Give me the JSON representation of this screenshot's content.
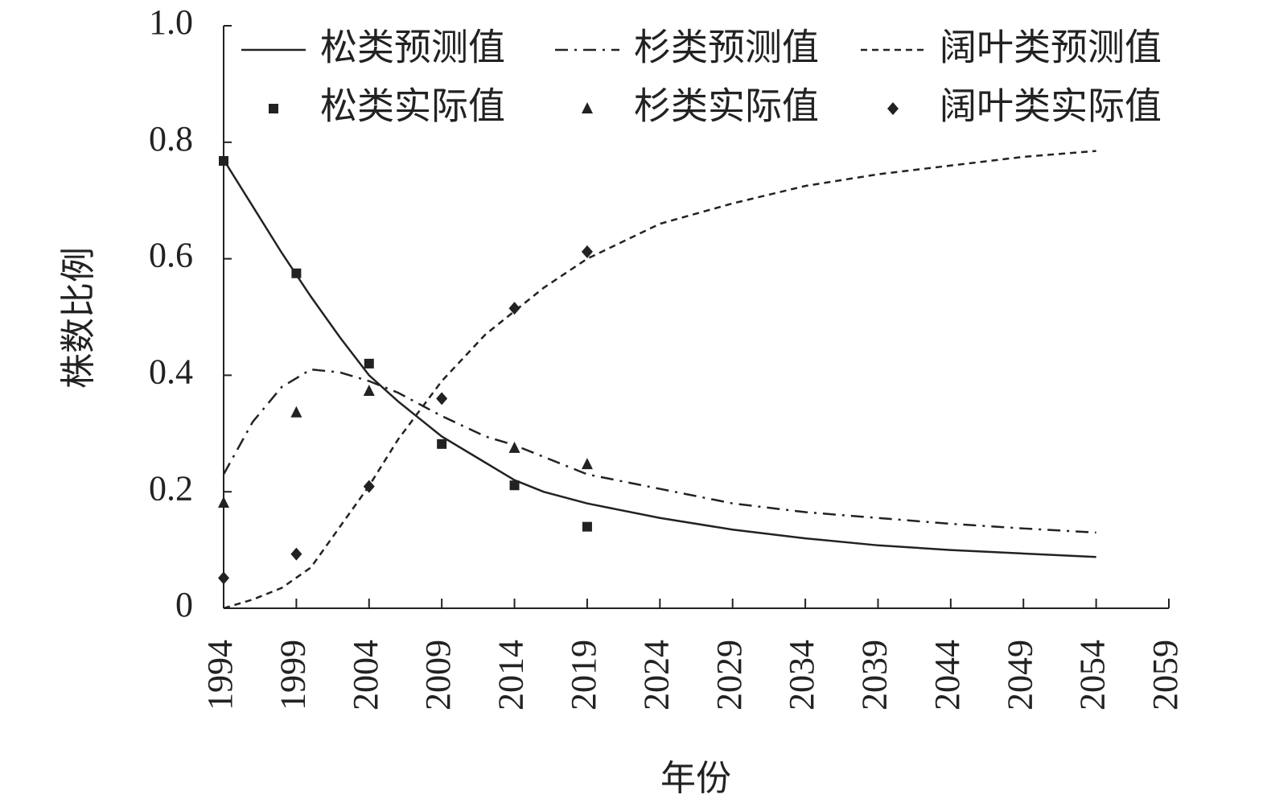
{
  "chart_data": {
    "type": "line-scatter",
    "x_label": "年份",
    "y_label": "株数比例",
    "xlim": [
      1994,
      2059
    ],
    "xticks": [
      1994,
      1999,
      2004,
      2009,
      2014,
      2019,
      2024,
      2029,
      2034,
      2039,
      2044,
      2049,
      2054,
      2059
    ],
    "ylim": [
      0,
      1
    ],
    "yticks": [
      0,
      0.2,
      0.4,
      0.6,
      0.8,
      {
        "value": 1,
        "label": "1.0"
      }
    ],
    "series": [
      {
        "name": "松类预测值",
        "kind": "line",
        "dash": "solid",
        "color": "#222222",
        "x": [
          1994,
          1996,
          1998,
          2000,
          2002,
          2004,
          2006,
          2009,
          2012,
          2014,
          2016,
          2019,
          2024,
          2029,
          2034,
          2039,
          2044,
          2049,
          2054
        ],
        "values": [
          0.77,
          0.69,
          0.61,
          0.535,
          0.465,
          0.4,
          0.355,
          0.295,
          0.25,
          0.22,
          0.2,
          0.18,
          0.155,
          0.135,
          0.12,
          0.108,
          0.1,
          0.094,
          0.088
        ]
      },
      {
        "name": "杉类预测值",
        "kind": "line",
        "dash": "dashdot",
        "color": "#222222",
        "x": [
          1994,
          1996,
          1998,
          2000,
          2002,
          2004,
          2006,
          2009,
          2012,
          2014,
          2016,
          2019,
          2024,
          2029,
          2034,
          2039,
          2044,
          2049,
          2054
        ],
        "values": [
          0.23,
          0.32,
          0.38,
          0.41,
          0.405,
          0.39,
          0.37,
          0.33,
          0.295,
          0.28,
          0.26,
          0.23,
          0.205,
          0.18,
          0.165,
          0.155,
          0.145,
          0.137,
          0.13
        ]
      },
      {
        "name": "阔叶类预测值",
        "kind": "line",
        "dash": "dashed",
        "color": "#222222",
        "x": [
          1994,
          1996,
          1998,
          2000,
          2002,
          2004,
          2006,
          2009,
          2012,
          2014,
          2016,
          2019,
          2024,
          2029,
          2034,
          2039,
          2044,
          2049,
          2054
        ],
        "values": [
          0.0,
          0.015,
          0.035,
          0.07,
          0.14,
          0.21,
          0.29,
          0.39,
          0.47,
          0.51,
          0.55,
          0.6,
          0.66,
          0.695,
          0.725,
          0.745,
          0.76,
          0.775,
          0.785
        ]
      },
      {
        "name": "松类实际值",
        "kind": "scatter",
        "marker": "square",
        "color": "#222222",
        "x": [
          1994,
          1999,
          2004,
          2009,
          2014,
          2019
        ],
        "values": [
          0.768,
          0.575,
          0.42,
          0.282,
          0.211,
          0.14
        ]
      },
      {
        "name": "杉类实际值",
        "kind": "scatter",
        "marker": "triangle",
        "color": "#222222",
        "x": [
          1994,
          1999,
          2004,
          2009,
          2014,
          2019
        ],
        "values": [
          0.181,
          0.336,
          0.373,
          null,
          0.275,
          0.247
        ]
      },
      {
        "name": "阔叶类实际值",
        "kind": "scatter",
        "marker": "diamond",
        "color": "#222222",
        "x": [
          1994,
          1999,
          2004,
          2009,
          2014,
          2019
        ],
        "values": [
          0.052,
          0.093,
          0.209,
          0.36,
          0.515,
          0.612
        ]
      }
    ]
  }
}
